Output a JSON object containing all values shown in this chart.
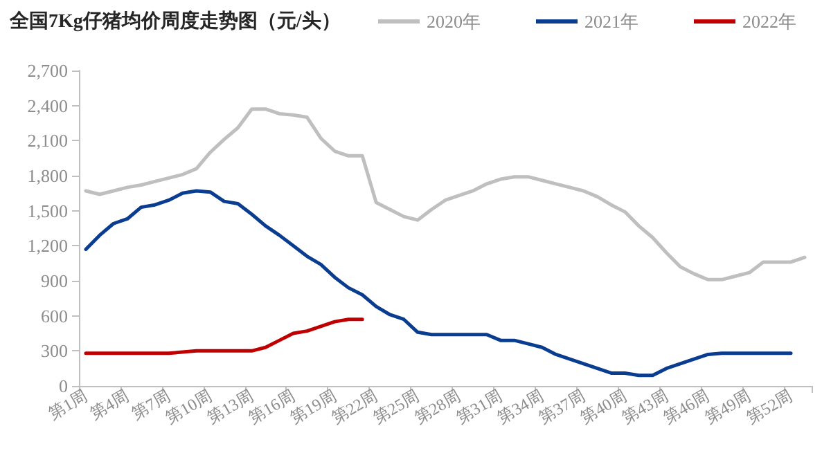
{
  "chart_data": {
    "type": "line",
    "title": "全国7Kg仔猪均价周度走势图（元/头）",
    "categories": [
      "第1周",
      null,
      null,
      "第4周",
      null,
      null,
      "第7周",
      null,
      null,
      "第10周",
      null,
      null,
      "第13周",
      null,
      null,
      "第16周",
      null,
      null,
      "第19周",
      null,
      null,
      "第22周",
      null,
      null,
      "第25周",
      null,
      null,
      "第28周",
      null,
      null,
      "第31周",
      null,
      null,
      "第34周",
      null,
      null,
      "第37周",
      null,
      null,
      "第40周",
      null,
      null,
      "第43周",
      null,
      null,
      "第46周",
      null,
      null,
      "第49周",
      null,
      null,
      "第52周",
      null
    ],
    "series": [
      {
        "name": "2020年",
        "color": "#bfbfbf",
        "values": [
          1670,
          1640,
          1670,
          1700,
          1720,
          1750,
          1780,
          1810,
          1860,
          2000,
          2110,
          2210,
          2370,
          2370,
          2330,
          2320,
          2300,
          2120,
          2010,
          1970,
          1970,
          1570,
          1510,
          1450,
          1420,
          1510,
          1590,
          1630,
          1670,
          1730,
          1770,
          1790,
          1790,
          1760,
          1730,
          1700,
          1670,
          1620,
          1550,
          1490,
          1370,
          1270,
          1140,
          1020,
          960,
          910,
          910,
          940,
          970,
          1060,
          1060,
          1060,
          1100
        ]
      },
      {
        "name": "2021年",
        "color": "#0a3d8f",
        "values": [
          1170,
          1290,
          1390,
          1430,
          1530,
          1550,
          1590,
          1650,
          1670,
          1660,
          1580,
          1560,
          1470,
          1370,
          1290,
          1200,
          1110,
          1040,
          930,
          840,
          780,
          680,
          610,
          570,
          460,
          440,
          440,
          440,
          440,
          440,
          390,
          390,
          360,
          330,
          270,
          230,
          190,
          150,
          110,
          110,
          90,
          90,
          150,
          190,
          230,
          270,
          280,
          280,
          280,
          280,
          280,
          280,
          null
        ]
      },
      {
        "name": "2022年",
        "color": "#c00000",
        "values": [
          280,
          280,
          280,
          280,
          280,
          280,
          280,
          290,
          300,
          300,
          300,
          300,
          300,
          330,
          390,
          450,
          470,
          510,
          550,
          570,
          570,
          null,
          null,
          null,
          null,
          null,
          null,
          null,
          null,
          null,
          null,
          null,
          null,
          null,
          null,
          null,
          null,
          null,
          null,
          null,
          null,
          null,
          null,
          null,
          null,
          null,
          null,
          null,
          null,
          null,
          null,
          null,
          null
        ]
      }
    ],
    "ylim": [
      0,
      2700
    ],
    "yticks": [
      0,
      300,
      600,
      900,
      {
        "value": 1200,
        "label": "1,200"
      },
      {
        "value": 1500,
        "label": "1,500"
      },
      {
        "value": 1800,
        "label": "1,800"
      },
      {
        "value": 2100,
        "label": "2,100"
      },
      {
        "value": 2400,
        "label": "2,400"
      },
      {
        "value": 2700,
        "label": "2,700"
      }
    ],
    "grid": false,
    "legend": "top right",
    "marker": "none",
    "line_style": "solid"
  }
}
